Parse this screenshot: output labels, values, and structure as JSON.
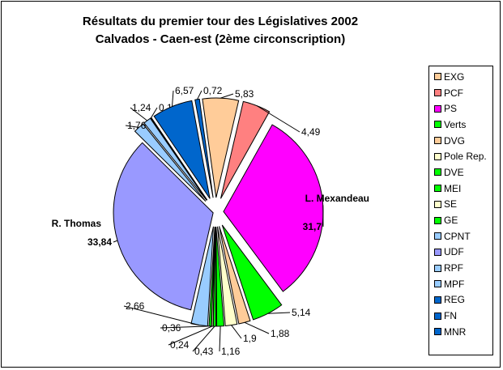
{
  "chart_data": {
    "type": "pie",
    "title": [
      "Résultats du premier tour des Législatives 2002",
      "Calvados - Caen-est (2ème circonscription)"
    ],
    "legend_position": "right",
    "slices": [
      {
        "name": "EXG",
        "value": 5.83,
        "label": "5,83",
        "color": "#FFCC99"
      },
      {
        "name": "PCF",
        "value": 4.49,
        "label": "4,49",
        "color": "#FF8080"
      },
      {
        "name": "PS",
        "value": 31.7,
        "label": "31,7",
        "color": "#FF00FF",
        "candidate": "L. Mexandeau"
      },
      {
        "name": "Verts",
        "value": 5.14,
        "label": "5,14",
        "color": "#00FF00"
      },
      {
        "name": "DVG",
        "value": 1.88,
        "label": "1,88",
        "color": "#FFCC99"
      },
      {
        "name": "Pole Rep.",
        "value": 1.9,
        "label": "1,9",
        "color": "#FFFFCC"
      },
      {
        "name": "DVE",
        "value": 1.16,
        "label": "1,16",
        "color": "#00FF00"
      },
      {
        "name": "MEI",
        "value": 0.43,
        "label": "0,43",
        "color": "#00FF00"
      },
      {
        "name": "SE",
        "value": 0.24,
        "label": "0,24",
        "color": "#FFFFCC"
      },
      {
        "name": "GE",
        "value": 0.36,
        "label": "0,36",
        "color": "#00FF00"
      },
      {
        "name": "CPNT",
        "value": 2.66,
        "label": "2,66",
        "color": "#99CCFF"
      },
      {
        "name": "UDF",
        "value": 33.84,
        "label": "33,84",
        "color": "#9999FF",
        "candidate": "R. Thomas"
      },
      {
        "name": "RPF",
        "value": 1.76,
        "label": "1,76",
        "color": "#99CCFF"
      },
      {
        "name": "MPF",
        "value": 1.24,
        "label": "1,24",
        "color": "#99CCFF"
      },
      {
        "name": "REG",
        "value": 0.1,
        "label": "0,1",
        "color": "#0066CC"
      },
      {
        "name": "FN",
        "value": 6.57,
        "label": "6,57",
        "color": "#0066CC"
      },
      {
        "name": "MNR",
        "value": 0.72,
        "label": "0,72",
        "color": "#0066CC"
      }
    ]
  }
}
